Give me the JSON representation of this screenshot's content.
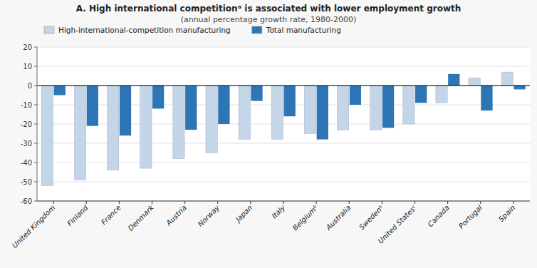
{
  "chart_data": {
    "type": "bar",
    "title": "A. High international competitionᵃ is associated with lower employment growth",
    "subtitle": "(annual percentage growth rate, 1980-2000)",
    "categories": [
      "United Kingdom",
      "Finland",
      "France",
      "Denmark",
      "Austria",
      "Norway",
      "Japan",
      "Italy",
      "Belgiumᵇ",
      "Australia",
      "Swedenᵇ",
      "United Statesᶜ",
      "Canada",
      "Portugal",
      "Spain"
    ],
    "series": [
      {
        "name": "High-international-competition manufacturing",
        "color": "#c5d5e8",
        "values": [
          -52,
          -49,
          -44,
          -43,
          -38,
          -35,
          -28,
          -28,
          -25,
          -23,
          -23,
          -20,
          -9,
          4,
          7
        ]
      },
      {
        "name": "Total manufacturing",
        "color": "#2e75b6",
        "values": [
          -5,
          -21,
          -26,
          -12,
          -23,
          -20,
          -8,
          -16,
          -28,
          -10,
          -22,
          -9,
          6,
          -13,
          -2
        ]
      }
    ],
    "ylim": [
      -60,
      20
    ],
    "yticks": [
      -60,
      -50,
      -40,
      -30,
      -20,
      -10,
      0,
      10,
      20
    ],
    "grid": true,
    "legend": "top"
  }
}
